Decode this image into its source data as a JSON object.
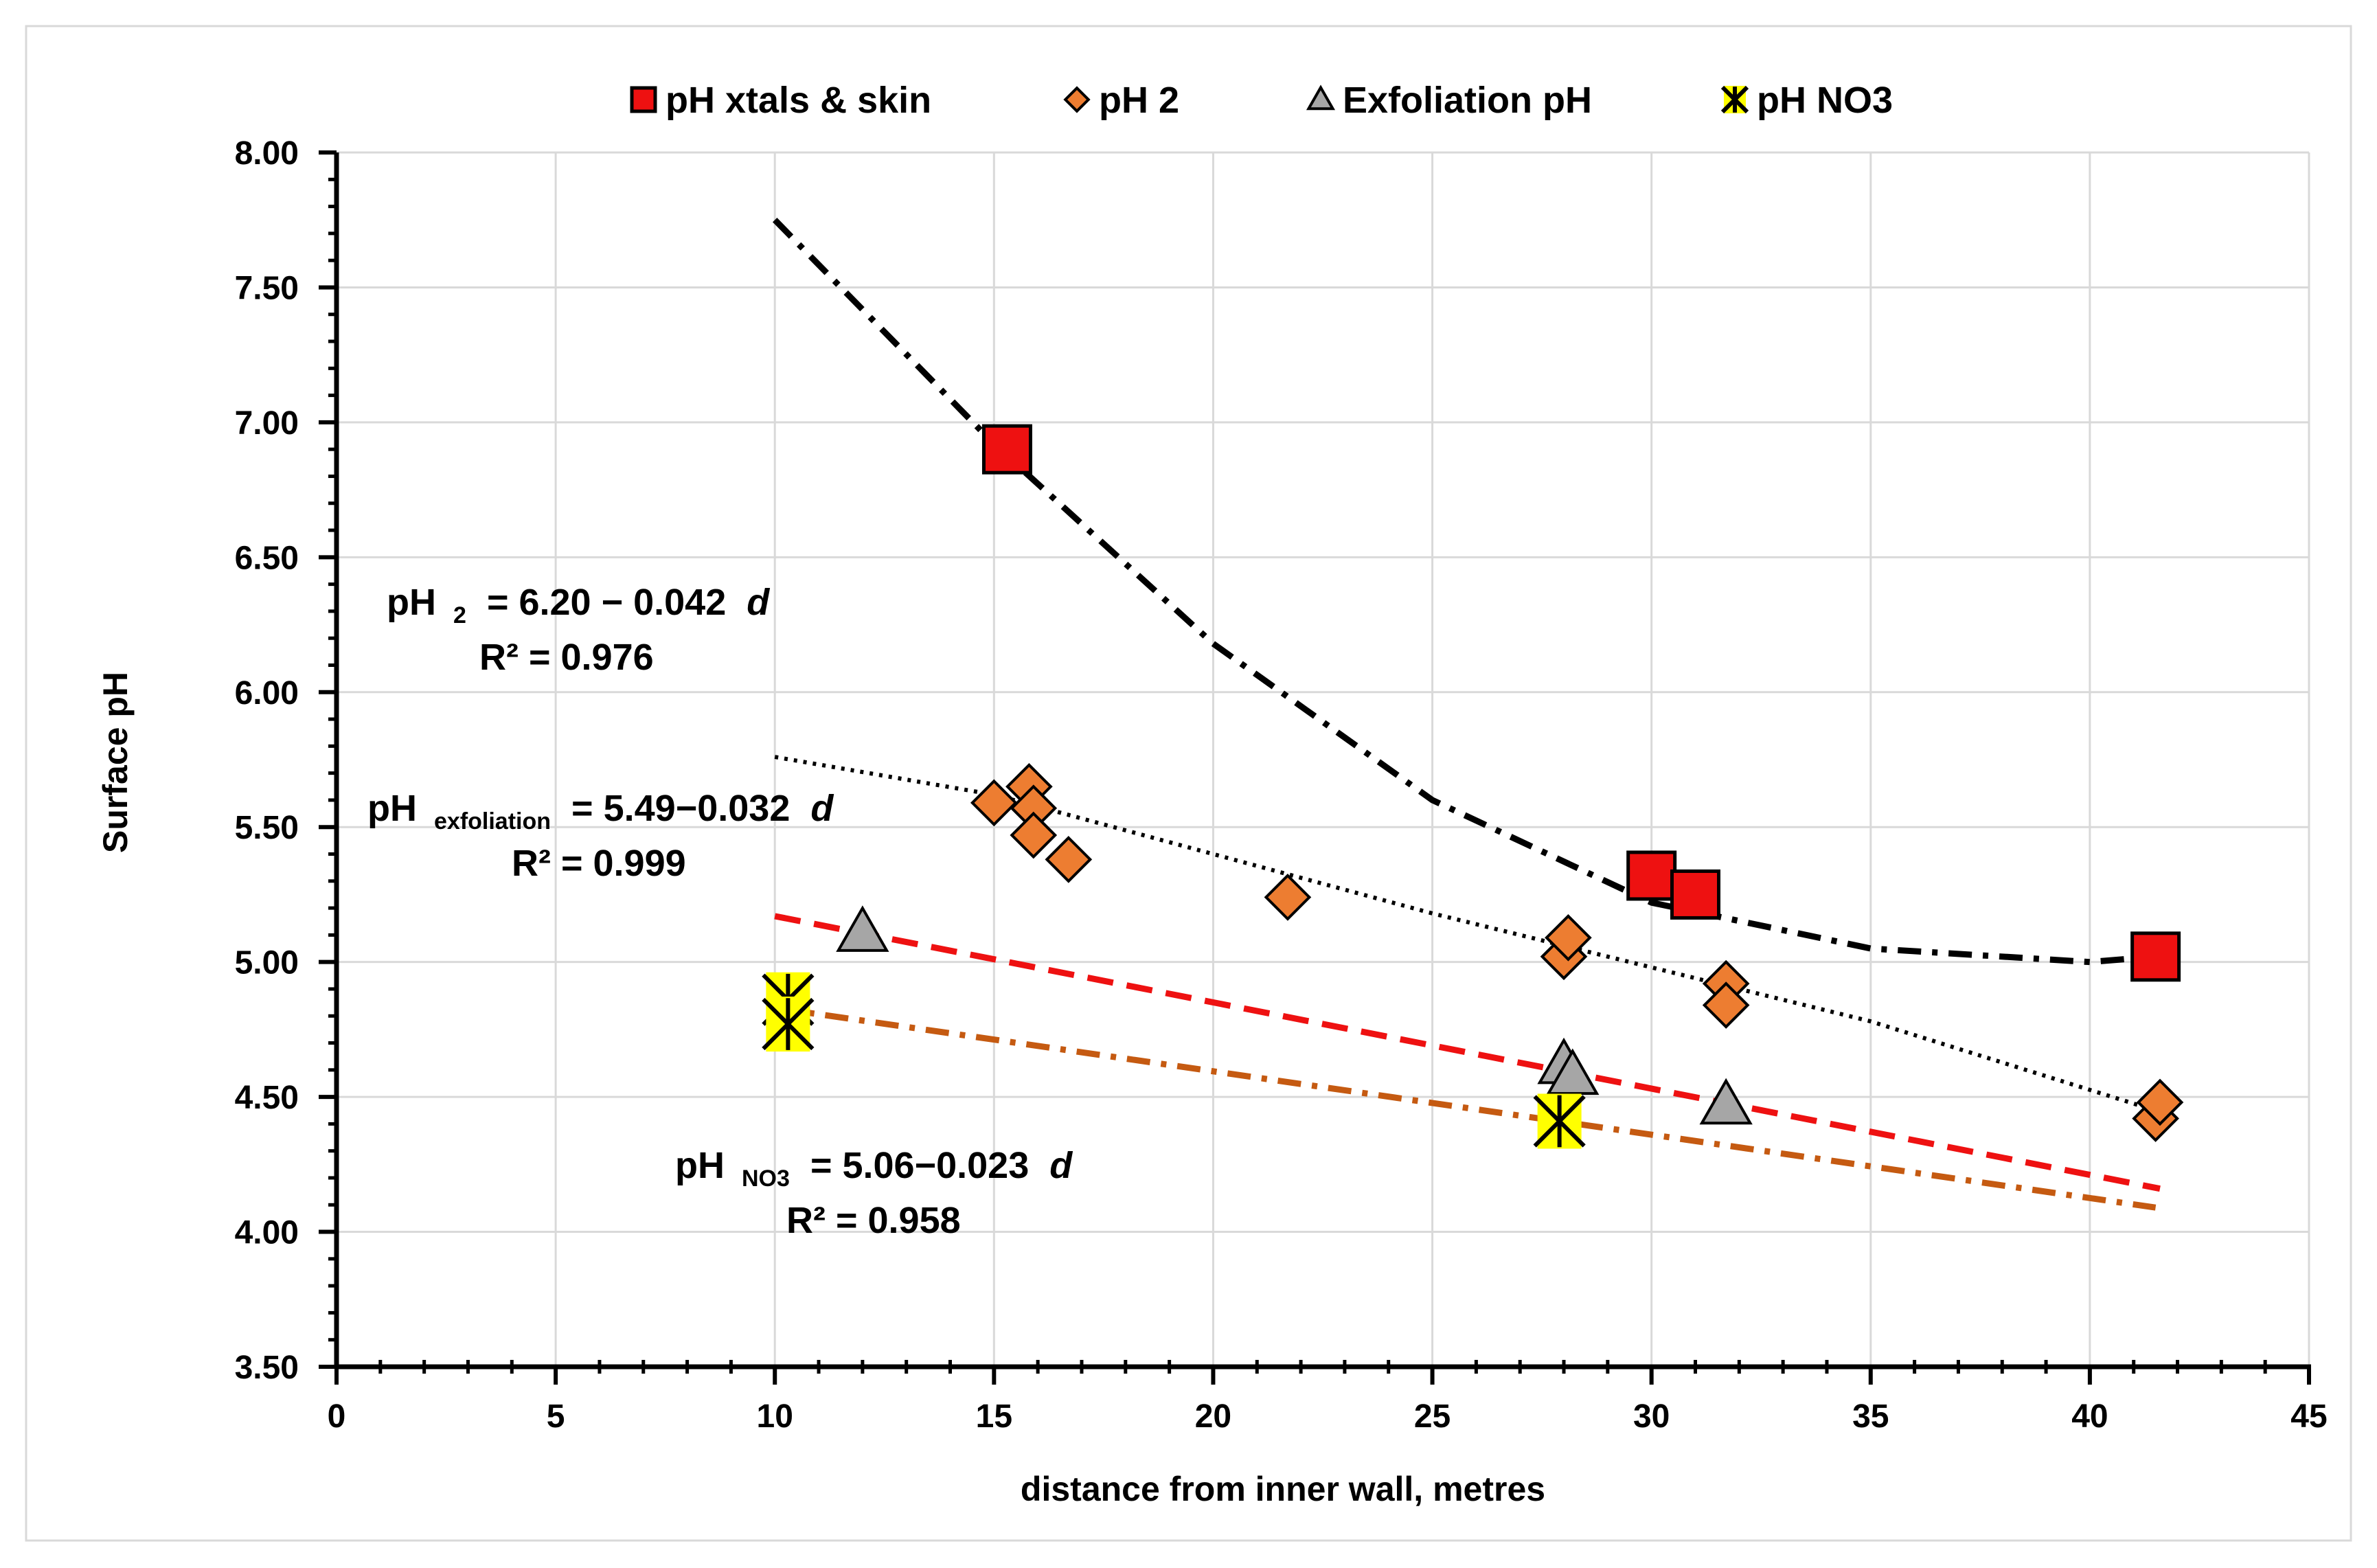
{
  "chart_data": {
    "type": "scatter",
    "title": "",
    "xlabel": "distance from inner wall, metres",
    "ylabel": "Surface pH",
    "xlim": [
      0,
      45
    ],
    "ylim": [
      3.5,
      8.0
    ],
    "x_ticks": [
      "0",
      "5",
      "10",
      "15",
      "20",
      "25",
      "30",
      "35",
      "40",
      "45"
    ],
    "y_ticks": [
      "3.50",
      "4.00",
      "4.50",
      "5.00",
      "5.50",
      "6.00",
      "6.50",
      "7.00",
      "7.50",
      "8.00"
    ],
    "grid": true,
    "legend_position": "top",
    "series": [
      {
        "name": "pH xtals & skin",
        "marker": "square",
        "color": "#ee1111",
        "points": [
          [
            15.3,
            6.9
          ],
          [
            30.0,
            5.32
          ],
          [
            31.0,
            5.25
          ],
          [
            41.5,
            5.02
          ]
        ]
      },
      {
        "name": "pH 2",
        "marker": "diamond",
        "color": "#ed7d31",
        "points": [
          [
            15.0,
            5.59
          ],
          [
            15.8,
            5.65
          ],
          [
            15.9,
            5.57
          ],
          [
            15.9,
            5.47
          ],
          [
            16.7,
            5.38
          ],
          [
            21.7,
            5.24
          ],
          [
            28.0,
            5.02
          ],
          [
            28.1,
            5.09
          ],
          [
            31.7,
            4.92
          ],
          [
            31.7,
            4.84
          ],
          [
            41.5,
            4.42
          ],
          [
            41.6,
            4.48
          ]
        ]
      },
      {
        "name": "Exfoliation pH",
        "marker": "triangle",
        "color": "#a6a6a6",
        "points": [
          [
            12.0,
            5.11
          ],
          [
            28.0,
            4.62
          ],
          [
            28.2,
            4.58
          ],
          [
            31.7,
            4.47
          ]
        ]
      },
      {
        "name": "pH NO3",
        "marker": "star",
        "color": "#ffff00",
        "points": [
          [
            10.3,
            4.86
          ],
          [
            10.3,
            4.77
          ],
          [
            27.9,
            4.41
          ]
        ]
      }
    ],
    "trendlines": [
      {
        "series": "pH xtals & skin",
        "style": "dash-dot",
        "color": "#000000",
        "points": [
          [
            10,
            7.75
          ],
          [
            15,
            6.92
          ],
          [
            20,
            6.18
          ],
          [
            25,
            5.6
          ],
          [
            30,
            5.22
          ],
          [
            35,
            5.05
          ],
          [
            40,
            5.0
          ],
          [
            41.5,
            5.02
          ]
        ]
      },
      {
        "series": "pH 2",
        "style": "dotted",
        "color": "#000000",
        "points": [
          [
            10,
            5.76
          ],
          [
            15,
            5.62
          ],
          [
            20,
            5.4
          ],
          [
            25,
            5.18
          ],
          [
            30,
            4.98
          ],
          [
            35,
            4.78
          ],
          [
            41.5,
            4.45
          ]
        ]
      },
      {
        "series": "Exfoliation pH",
        "style": "dashed",
        "color": "#ee1111",
        "points": [
          [
            10,
            5.17
          ],
          [
            41.6,
            4.16
          ]
        ]
      },
      {
        "series": "pH NO3",
        "style": "dash-dot",
        "color": "#c55a11",
        "points": [
          [
            10,
            4.83
          ],
          [
            41.5,
            4.09
          ]
        ]
      }
    ],
    "annotations": [
      {
        "id": "ph2",
        "main": "pH",
        "sub": "2",
        "rest": " = 6.20 − 0.042 ",
        "var": "d",
        "r2": "R² = 0.976"
      },
      {
        "id": "exf",
        "main": "pH",
        "sub": "exfoliation",
        "rest": " = 5.49−0.032 ",
        "var": "d",
        "r2": "R² = 0.999"
      },
      {
        "id": "no3",
        "main": "pH",
        "sub": "NO3",
        "rest": " = 5.06−0.023 ",
        "var": "d",
        "r2": "R² = 0.958"
      }
    ]
  }
}
